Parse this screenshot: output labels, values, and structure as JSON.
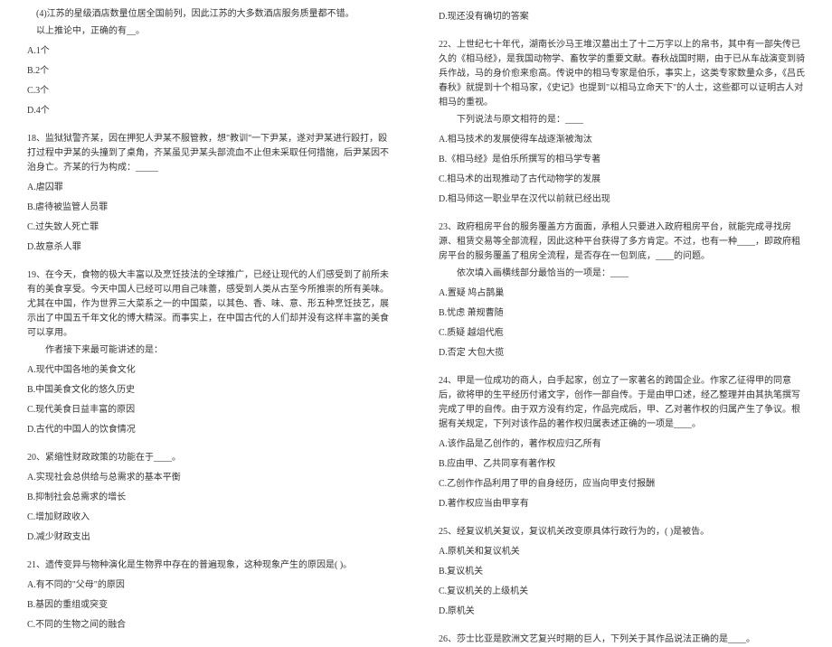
{
  "left": {
    "q17_line": "(4)江苏的星级酒店数量位居全国前列，因此江苏的大多数酒店服务质量都不错。",
    "q17_sub": "以上推论中，正确的有__。",
    "q17_opts": [
      "A.1个",
      "B.2个",
      "C.3个",
      "D.4个"
    ],
    "q18_text": "18、监狱狱警齐某，因在押犯人尹某不服管教，想\"教训\"一下尹某，遂对尹某进行殴打，殴打过程中尹某的头撞到了桌角，齐某虽见尹某头部流血不止但未采取任何措施，后尹某因不治身亡。齐某的行为构成：_____",
    "q18_opts": [
      "A.虐囚罪",
      "B.虐待被监管人员罪",
      "C.过失致人死亡罪",
      "D.故意杀人罪"
    ],
    "q19_text": "19、在今天，食物的极大丰富以及烹饪技法的全球推广，已经让现代的人们感受到了前所未有的美食享受。今天中国人已经可以用自己味蕾，感受到人类从古至今所推崇的所有美味。尤其在中国，作为世界三大菜系之一的中国菜，以其色、香、味、意、形五种烹饪技艺，展示出了中国五千年文化的博大精深。而事实上，在中国古代的人们却并没有这样丰富的美食可以享用。",
    "q19_sub": "作者接下来最可能讲述的是：",
    "q19_opts": [
      "A.现代中国各地的美食文化",
      "B.中国美食文化的悠久历史",
      "C.现代美食日益丰富的原因",
      "D.古代的中国人的饮食情况"
    ],
    "q20_text": "20、紧缩性财政政策的功能在于____。",
    "q20_opts": [
      "A.实现社会总供给与总需求的基本平衡",
      "B.抑制社会总需求的增长",
      "C.增加财政收入",
      "D.减少财政支出"
    ],
    "q21_text": "21、遗传变异与物种演化是生物界中存在的普遍现象，这种现象产生的原因是( )。",
    "q21_opts": [
      "A.有不同的\"父母\"的原因",
      "B.基因的重组或突变",
      "C.不同的生物之间的融合"
    ]
  },
  "right": {
    "q21_d": "D.现还没有确切的答案",
    "q22_text": "22、上世纪七十年代，湖南长沙马王堆汉墓出土了十二万字以上的帛书，其中有一部失传已久的《相马经》，是我国动物学、畜牧学的重要文献。春秋战国时期，由于已从车战演变到骑兵作战，马的身价愈来愈高。传说中的相马专家是伯乐，事实上，这类专家数量众多，《吕氏春秋》就提到十个相马家，《史记》也提到\"以相马立命天下\"的人士，这些都可以证明古人对相马的重视。",
    "q22_sub": "下列说法与原文相符的是：____",
    "q22_opts": [
      "A.相马技术的发展使得车战逐渐被淘汰",
      "B.《相马经》是伯乐所撰写的相马学专著",
      "C.相马术的出现推动了古代动物学的发展",
      "D.相马师这一职业早在汉代以前就已经出现"
    ],
    "q23_text": "23、政府租房平台的服务覆盖方方面面，承租人只要进入政府租房平台，就能完成寻找房源、租赁交易等全部流程，因此这种平台获得了多方肯定。不过，也有一种____，即政府租房平台的服务覆盖了租房全流程，是否存在一包到底，____的问题。",
    "q23_sub": "依次填入画横线部分最恰当的一项是：____",
    "q23_opts": [
      "A.置疑 鸠占鹊巢",
      "B.忧虑 萧规曹随",
      "C.质疑 越俎代庖",
      "D.否定 大包大揽"
    ],
    "q24_text": "24、甲是一位成功的商人，白手起家，创立了一家著名的跨国企业。作家乙征得甲的同意后，欲将甲的生平经历付诸文字，创作一部自传。于是由甲口述，经乙整理并由其执笔撰写完成了甲的自传。由于双方没有约定，作品完成后，甲、乙对著作权的归属产生了争议。根据有关规定，下列对该作品的著作权归属表述正确的一项是____。",
    "q24_opts": [
      "A.该作品是乙创作的，著作权应归乙所有",
      "B.应由甲、乙共同享有著作权",
      "C.乙创作作品利用了甲的自身经历，应当向甲支付报酬",
      "D.著作权应当由甲享有"
    ],
    "q25_text": "25、经复议机关复议，复议机关改变原具体行政行为的，( )是被告。",
    "q25_opts": [
      "A.原机关和复议机关",
      "B.复议机关",
      "C.复议机关的上级机关",
      "D.原机关"
    ],
    "q26_text": "26、莎士比亚是欧洲文艺复兴时期的巨人，下列关于其作品说法正确的是____。"
  }
}
